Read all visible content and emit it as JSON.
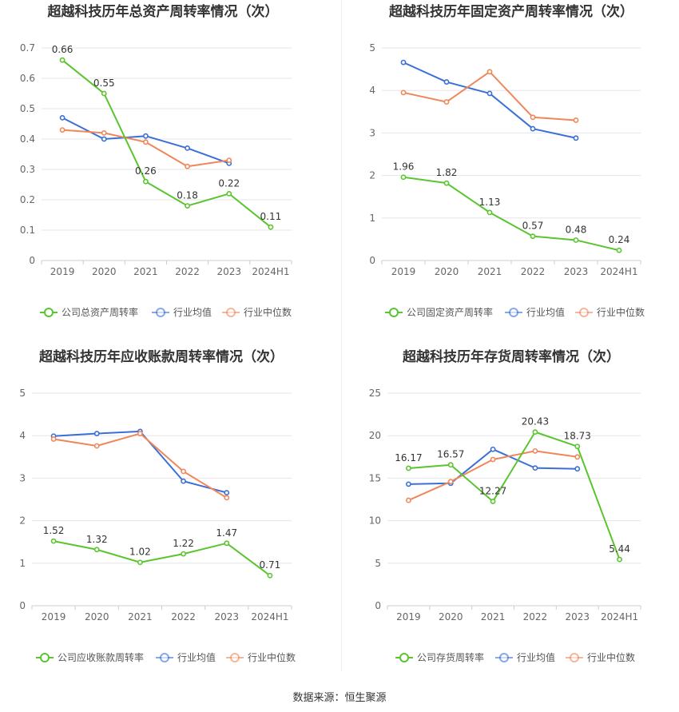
{
  "colors": {
    "company": "#5ac52f",
    "industry_avg": "#3b6fd8",
    "industry_median": "#f0875a",
    "grid": "#e6e6ea",
    "axis_text": "#666666",
    "title_text": "#333333"
  },
  "footer": "数据来源：恒生聚源",
  "chart_data": [
    {
      "type": "line",
      "title": "超越科技历年总资产周转率情况（次）",
      "categories": [
        "2019",
        "2020",
        "2021",
        "2022",
        "2023",
        "2024H1"
      ],
      "ylim": [
        0,
        0.7
      ],
      "yticks": [
        "0",
        "0.1",
        "0.2",
        "0.3",
        "0.4",
        "0.5",
        "0.6",
        "0.7"
      ],
      "grid": true,
      "legend_position": "bottom",
      "series": [
        {
          "name": "公司总资产周转率",
          "color_key": "company",
          "values": [
            0.66,
            0.55,
            0.26,
            0.18,
            0.22,
            0.11
          ],
          "labels": [
            "0.66",
            "0.55",
            "0.26",
            "0.18",
            "0.22",
            "0.11"
          ]
        },
        {
          "name": "行业均值",
          "color_key": "industry_avg",
          "values": [
            0.47,
            0.4,
            0.41,
            0.37,
            0.32,
            null
          ]
        },
        {
          "name": "行业中位数",
          "color_key": "industry_median",
          "values": [
            0.43,
            0.42,
            0.39,
            0.31,
            0.33,
            null
          ]
        }
      ]
    },
    {
      "type": "line",
      "title": "超越科技历年固定资产周转率情况（次）",
      "categories": [
        "2019",
        "2020",
        "2021",
        "2022",
        "2023",
        "2024H1"
      ],
      "ylim": [
        0,
        5
      ],
      "yticks": [
        "0",
        "1",
        "2",
        "3",
        "4",
        "5"
      ],
      "grid": true,
      "legend_position": "bottom",
      "series": [
        {
          "name": "公司固定资产周转率",
          "color_key": "company",
          "values": [
            1.96,
            1.82,
            1.13,
            0.57,
            0.48,
            0.24
          ],
          "labels": [
            "1.96",
            "1.82",
            "1.13",
            "0.57",
            "0.48",
            "0.24"
          ]
        },
        {
          "name": "行业均值",
          "color_key": "industry_avg",
          "values": [
            4.66,
            4.2,
            3.93,
            3.1,
            2.88,
            null
          ]
        },
        {
          "name": "行业中位数",
          "color_key": "industry_median",
          "values": [
            3.95,
            3.73,
            4.44,
            3.37,
            3.3,
            null
          ]
        }
      ]
    },
    {
      "type": "line",
      "title": "超越科技历年应收账款周转率情况（次）",
      "categories": [
        "2019",
        "2020",
        "2021",
        "2022",
        "2023",
        "2024H1"
      ],
      "ylim": [
        0,
        5
      ],
      "yticks": [
        "0",
        "1",
        "2",
        "3",
        "4",
        "5"
      ],
      "grid": true,
      "legend_position": "bottom",
      "series": [
        {
          "name": "公司应收账款周转率",
          "color_key": "company",
          "values": [
            1.52,
            1.32,
            1.02,
            1.22,
            1.47,
            0.71
          ],
          "labels": [
            "1.52",
            "1.32",
            "1.02",
            "1.22",
            "1.47",
            "0.71"
          ]
        },
        {
          "name": "行业均值",
          "color_key": "industry_avg",
          "values": [
            3.99,
            4.05,
            4.1,
            2.93,
            2.66,
            null
          ]
        },
        {
          "name": "行业中位数",
          "color_key": "industry_median",
          "values": [
            3.92,
            3.76,
            4.05,
            3.16,
            2.54,
            null
          ]
        }
      ]
    },
    {
      "type": "line",
      "title": "超越科技历年存货周转率情况（次）",
      "categories": [
        "2019",
        "2020",
        "2021",
        "2022",
        "2023",
        "2024H1"
      ],
      "ylim": [
        0,
        25
      ],
      "yticks": [
        "0",
        "5",
        "10",
        "15",
        "20",
        "25"
      ],
      "grid": true,
      "legend_position": "bottom",
      "series": [
        {
          "name": "公司存货周转率",
          "color_key": "company",
          "values": [
            16.17,
            16.57,
            12.27,
            20.43,
            18.73,
            5.44
          ],
          "labels": [
            "16.17",
            "16.57",
            "12.27",
            "20.43",
            "18.73",
            "5.44"
          ]
        },
        {
          "name": "行业均值",
          "color_key": "industry_avg",
          "values": [
            14.3,
            14.4,
            18.4,
            16.2,
            16.1,
            null
          ]
        },
        {
          "name": "行业中位数",
          "color_key": "industry_median",
          "values": [
            12.4,
            14.6,
            17.2,
            18.2,
            17.5,
            null
          ]
        }
      ]
    }
  ]
}
